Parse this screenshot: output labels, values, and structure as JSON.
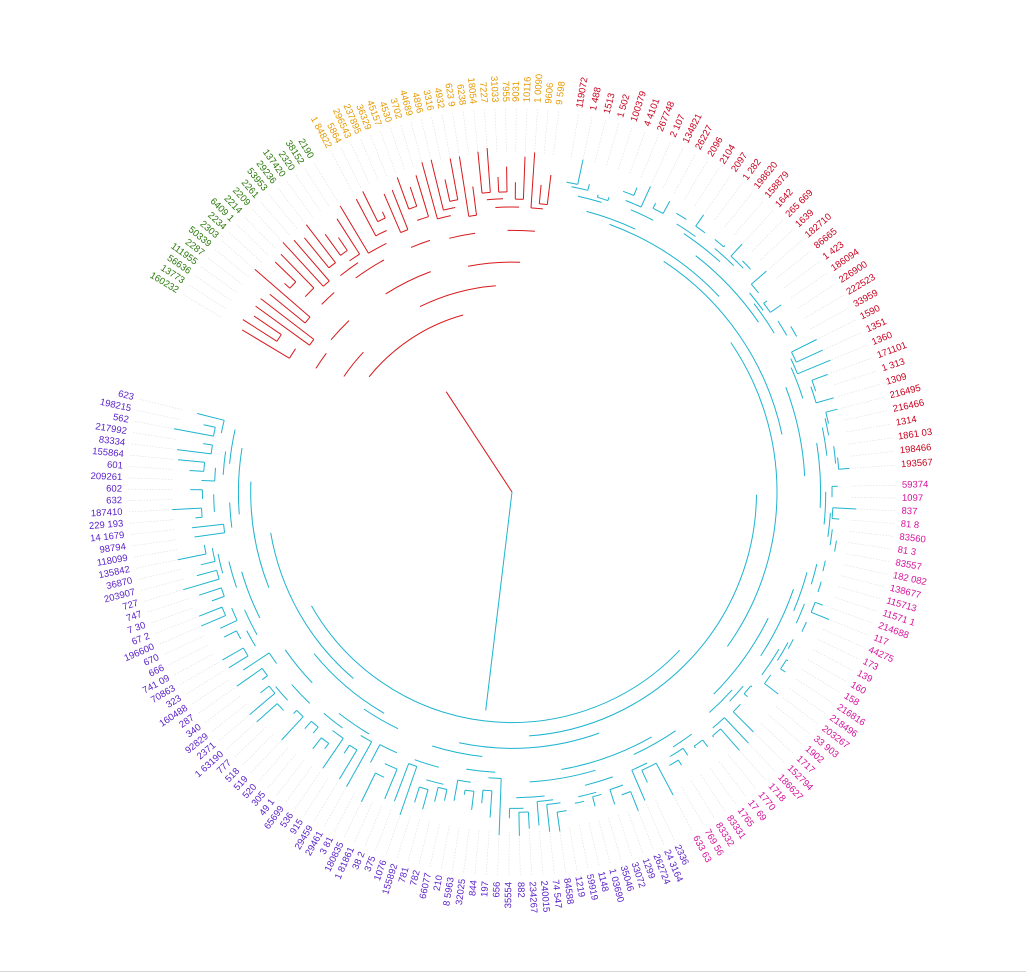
{
  "colors": {
    "red_clade": "#d7191c",
    "cyan_clade": "#1eb4cf",
    "label_green": "#2b7a0b",
    "label_orange": "#e69a00",
    "label_red": "#c8001e",
    "label_magenta": "#d6109b",
    "label_purple": "#5a22c8",
    "guide": "#dcdcdc"
  },
  "groups": [
    {
      "name": "green",
      "color": "#2b7a0b",
      "leaves": [
        "160232",
        "13773",
        "56636",
        "111955",
        "2287",
        "50339",
        "2303",
        "2234",
        "6409 1",
        "2214",
        "2209",
        "2261",
        "53953",
        "29236",
        "137420",
        "2320",
        "38152",
        "2190"
      ]
    },
    {
      "name": "orange",
      "color": "#e69a00",
      "leaves": [
        "1 84822",
        "5864",
        "296543",
        "237895",
        "36329",
        "45157",
        "4530",
        "3702",
        "44689",
        "4896",
        "3316",
        "4932",
        "623 9",
        "6238",
        "18054",
        "7227",
        "31033",
        "7955",
        "9031",
        "10116",
        "1 0090",
        "9606",
        "9 598"
      ]
    },
    {
      "name": "red",
      "color": "#c8001e",
      "leaves": [
        "119072",
        "1 488",
        "1513",
        "1 502",
        "100379",
        "4 4101",
        "267748",
        "2 107",
        "134821",
        "26227",
        "2096",
        "2104",
        "2097",
        "1 282",
        "198620",
        "158879",
        "1642",
        "265 669",
        "1639",
        "182710",
        "86665",
        "1 423",
        "186094",
        "226900",
        "222523",
        "33959",
        "1590",
        "1351",
        "1360",
        "171101",
        "1 313",
        "1309",
        "216495",
        "216466",
        "1314",
        "1861 03",
        "198466",
        "193567"
      ]
    },
    {
      "name": "magenta",
      "color": "#d6109b",
      "leaves": [
        "59374",
        "1097",
        "837",
        "81 8",
        "83560",
        "81 3",
        "83557",
        "182 082",
        "138677",
        "115713",
        "11571 1",
        "214688",
        "117",
        "44275",
        "173",
        "139",
        "160",
        "158",
        "216816",
        "218496",
        "203267",
        "33 903",
        "1902",
        "1717",
        "152794",
        "186627",
        "1718",
        "1770",
        "17 69",
        "1765",
        "83331",
        "83332",
        "769 56",
        "633 63"
      ]
    },
    {
      "name": "purple",
      "color": "#5a22c8",
      "leaves": [
        "2336",
        "24 3164",
        "262724",
        "1299",
        "33072",
        "35046",
        "1 03690",
        "1148",
        "59919",
        "1219",
        "84588",
        "74 547",
        "240015",
        "234267",
        "882",
        "35554",
        "656",
        "197",
        "844",
        "32025",
        "8 5963",
        "210",
        "66077",
        "782",
        "781",
        "155892",
        "1076",
        "375",
        "38 2",
        "1 81861",
        "180835",
        "3 81",
        "29461",
        "29459",
        "915",
        "536",
        "65699",
        "49 1",
        "305",
        "520",
        "519",
        "518",
        "777",
        "1 63190",
        "2371",
        "92829",
        "340",
        "287",
        "160488",
        "323",
        "70863",
        "741 09",
        "666",
        "670",
        "196600",
        "67 2",
        "7 30",
        "747",
        "727",
        "203907",
        "36870",
        "135842",
        "118099",
        "98794",
        "14 1679",
        "229 193",
        "187410",
        "632",
        "602",
        "209261",
        "601",
        "155864",
        "83334",
        "217992",
        "562",
        "198215",
        "623"
      ]
    }
  ],
  "tree": {
    "clades": [
      {
        "name": "red-clade",
        "color": "#d7191c",
        "groups": [
          "green",
          "orange"
        ]
      },
      {
        "name": "cyan-clade",
        "color": "#1eb4cf",
        "groups": [
          "red",
          "magenta",
          "purple"
        ]
      }
    ]
  }
}
